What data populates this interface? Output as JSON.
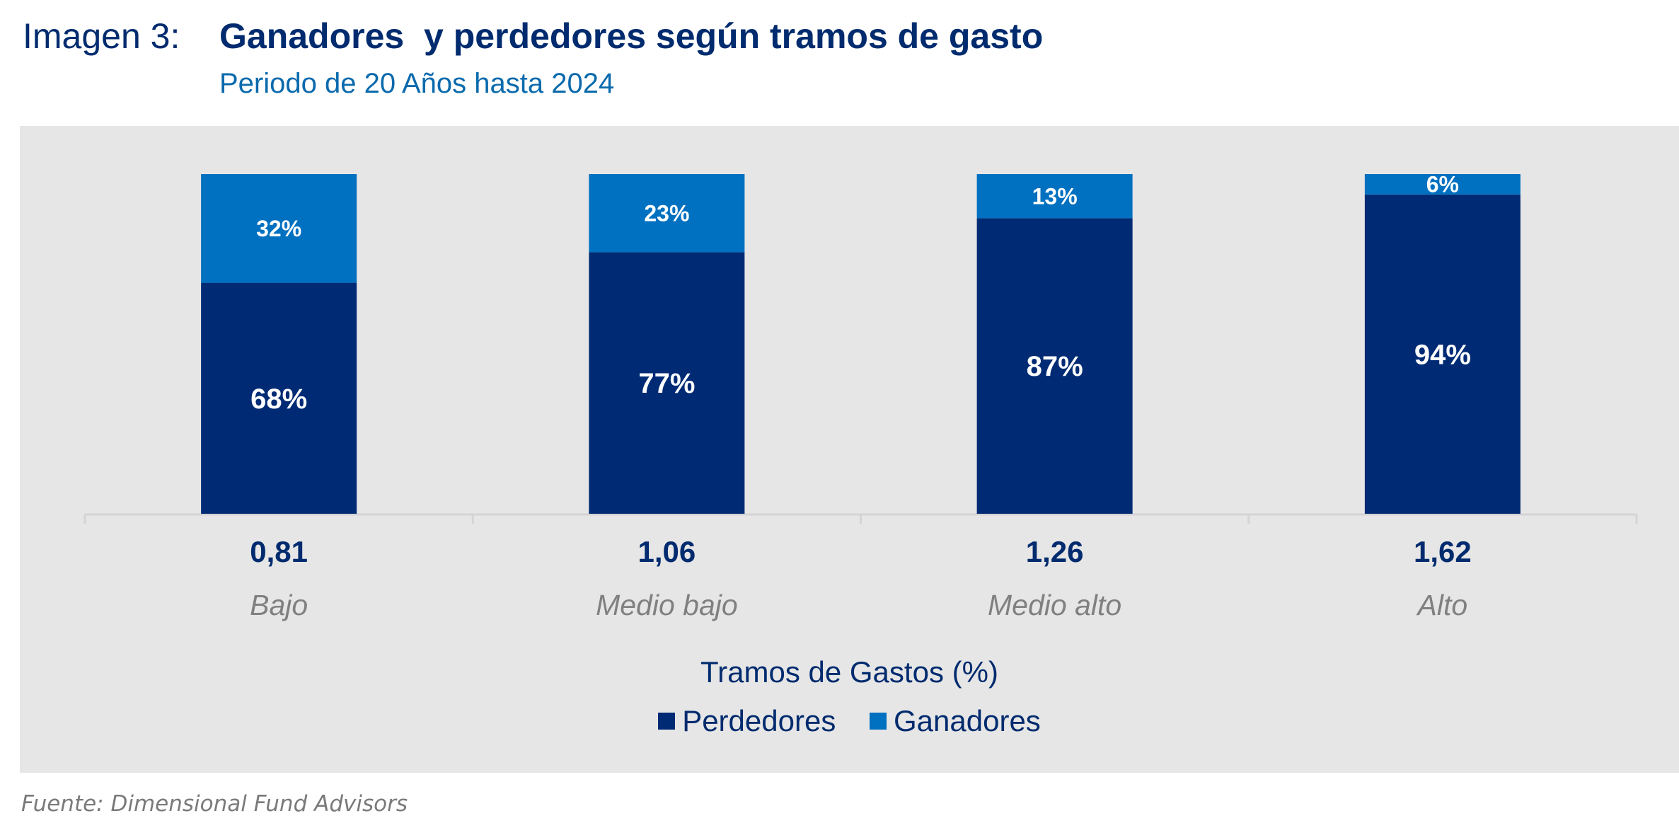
{
  "header": {
    "label": "Imagen 3:",
    "title": "Ganadores  y perdedores según tramos de gasto",
    "subtitle": "Periodo de 20 Años hasta 2024"
  },
  "chart_data": {
    "type": "bar",
    "stacked": true,
    "percent_stacked": true,
    "categories": [
      "Bajo",
      "Medio bajo",
      "Medio alto",
      "Alto"
    ],
    "category_values": [
      "0,81",
      "1,06",
      "1,26",
      "1,62"
    ],
    "xlabel": "Tramos de Gastos (%)",
    "ylim": [
      0,
      100
    ],
    "grid": false,
    "legend_position": "bottom",
    "series": [
      {
        "name": "Perdedores",
        "values": [
          68,
          77,
          87,
          94
        ],
        "labels": [
          "68%",
          "77%",
          "87%",
          "94%"
        ],
        "color": "#002b74"
      },
      {
        "name": "Ganadores",
        "values": [
          32,
          23,
          13,
          6
        ],
        "labels": [
          "32%",
          "23%",
          "13%",
          "6%"
        ],
        "color": "#0070c0"
      }
    ]
  },
  "source": "Fuente: Dimensional Fund Advisors",
  "colors": {
    "title": "#002b6e",
    "subtitle": "#0a6aad",
    "panel_background": "#e6e6e6",
    "category_text": "#808080"
  }
}
